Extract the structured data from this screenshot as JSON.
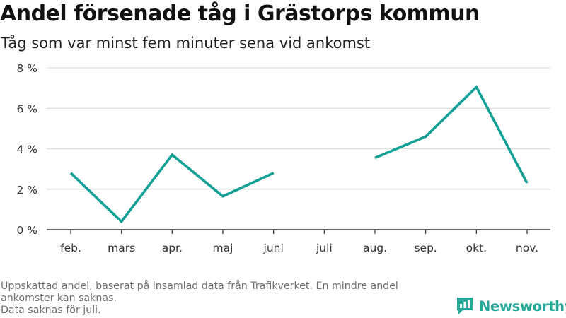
{
  "title": "Andel försenade tåg i Grästorps kommun",
  "subtitle": "Tåg som var minst fem minuter sena vid ankomst",
  "footnote": {
    "line1": "Uppskattad andel, baserat på insamlad data från Trafikverket. En mindre andel",
    "line2": "ankomster kan saknas.",
    "line3": "Data saknas för juli."
  },
  "brand": {
    "name": "Newsworthy",
    "icon": "newsworthy-logo-icon"
  },
  "colors": {
    "line": "#13a096",
    "grid": "#dddddd",
    "axis": "#333333",
    "text": "#333333"
  },
  "chart_data": {
    "type": "line",
    "title": "Andel försenade tåg i Grästorps kommun",
    "subtitle": "Tåg som var minst fem minuter sena vid ankomst",
    "categories": [
      "feb.",
      "mars",
      "apr.",
      "maj",
      "juni",
      "juli",
      "aug.",
      "sep.",
      "okt.",
      "nov."
    ],
    "series": [
      {
        "values": [
          2.8,
          0.4,
          3.7,
          1.65,
          2.8,
          null,
          3.55,
          4.6,
          7.05,
          2.3
        ]
      }
    ],
    "yticks": [
      0,
      2,
      4,
      6,
      8
    ],
    "ytick_labels": [
      "0 %",
      "2 %",
      "4 %",
      "6 %",
      "8 %"
    ],
    "ylim": [
      0,
      8
    ],
    "grid": true,
    "legend": false,
    "xlabel": "",
    "ylabel": ""
  }
}
